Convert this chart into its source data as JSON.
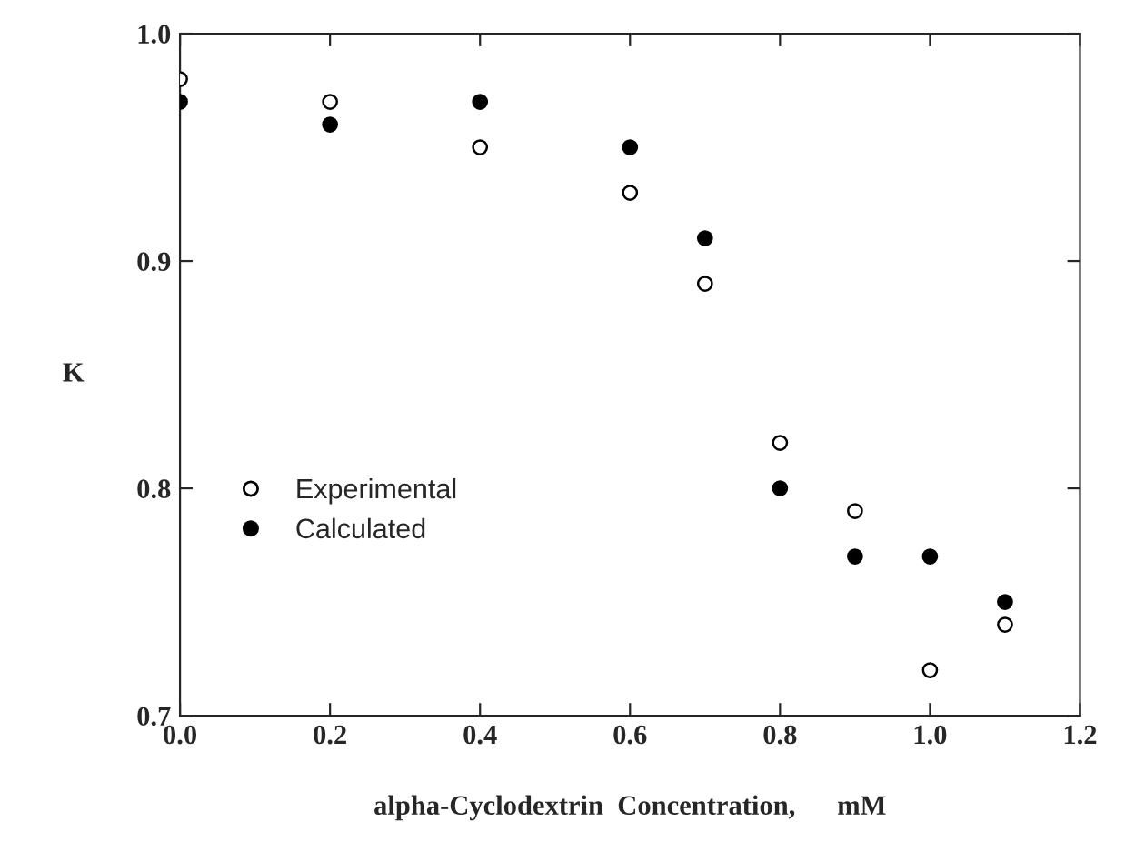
{
  "chart_data": {
    "type": "scatter",
    "xlabel": "alpha-Cyclodextrin  Concentration,      mM",
    "ylabel": "K",
    "x": [
      0.0,
      0.2,
      0.4,
      0.6,
      0.7,
      0.8,
      0.9,
      1.0,
      1.1
    ],
    "series": [
      {
        "name": "Experimental",
        "color": "#ffffff",
        "values": [
          0.98,
          0.97,
          0.95,
          0.93,
          0.89,
          0.82,
          0.79,
          0.72,
          0.74
        ]
      },
      {
        "name": "Calculated",
        "color": "#000000",
        "values": [
          0.97,
          0.96,
          0.97,
          0.95,
          0.91,
          0.8,
          0.77,
          0.77,
          0.75
        ]
      }
    ],
    "xlim": [
      0.0,
      1.2
    ],
    "ylim": [
      0.7,
      1.0
    ],
    "xticks": [
      {
        "value": 0.0,
        "label": "0.0"
      },
      {
        "value": 0.2,
        "label": "0.2"
      },
      {
        "value": 0.4,
        "label": "0.4"
      },
      {
        "value": 0.6,
        "label": "0.6"
      },
      {
        "value": 0.8,
        "label": "0.8"
      },
      {
        "value": 1.0,
        "label": "1.0"
      },
      {
        "value": 1.2,
        "label": "1.2"
      }
    ],
    "yticks": [
      {
        "value": 0.7,
        "label": "0.7"
      },
      {
        "value": 0.8,
        "label": "0.8"
      },
      {
        "value": 0.9,
        "label": "0.9"
      },
      {
        "value": 1.0,
        "label": "1.0"
      }
    ],
    "marker": "circle",
    "grid": false,
    "legend": "left"
  }
}
